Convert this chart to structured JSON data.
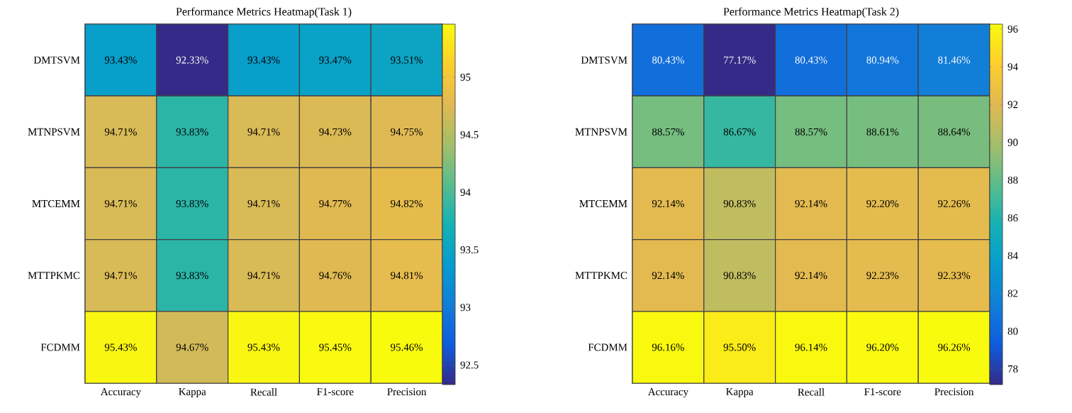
{
  "chart_data": [
    {
      "type": "heatmap",
      "title": "Performance Metrics Heatmap(Task 1)",
      "categories": [
        "Accuracy",
        "Kappa",
        "Recall",
        "F1-score",
        "Precision"
      ],
      "y_categories": [
        "DMTSVM",
        "MTNPSVM",
        "MTCEMM",
        "MTTPKMC",
        "FCDMM"
      ],
      "cells": [
        [
          93.43,
          92.33,
          93.43,
          93.47,
          93.51
        ],
        [
          94.71,
          93.83,
          94.71,
          94.73,
          94.75
        ],
        [
          94.71,
          93.83,
          94.71,
          94.77,
          94.82
        ],
        [
          94.71,
          93.83,
          94.71,
          94.76,
          94.81
        ],
        [
          95.43,
          94.67,
          95.43,
          95.45,
          95.46
        ]
      ],
      "cell_labels": [
        [
          "93.43%",
          "92.33%",
          "93.43%",
          "93.47%",
          "93.51%"
        ],
        [
          "94.71%",
          "93.83%",
          "94.71%",
          "94.73%",
          "94.75%"
        ],
        [
          "94.71%",
          "93.83%",
          "94.71%",
          "94.77%",
          "94.82%"
        ],
        [
          "94.71%",
          "93.83%",
          "94.71%",
          "94.76%",
          "94.81%"
        ],
        [
          "95.43%",
          "94.67%",
          "95.43%",
          "95.45%",
          "95.46%"
        ]
      ],
      "clim": [
        92.33,
        95.46
      ],
      "cticks": [
        92.5,
        93,
        93.5,
        94,
        94.5,
        95
      ]
    },
    {
      "type": "heatmap",
      "title": "Performance Metrics Heatmap(Task 2)",
      "categories": [
        "Accuracy",
        "Kappa",
        "Recall",
        "F1-score",
        "Precision"
      ],
      "y_categories": [
        "DMTSVM",
        "MTNPSVM",
        "MTCEMM",
        "MTTPKMC",
        "FCDMM"
      ],
      "cells": [
        [
          80.43,
          77.17,
          80.43,
          80.94,
          81.46
        ],
        [
          88.57,
          86.67,
          88.57,
          88.61,
          88.64
        ],
        [
          92.14,
          90.83,
          92.14,
          92.2,
          92.26
        ],
        [
          92.14,
          90.83,
          92.14,
          92.23,
          92.33
        ],
        [
          96.16,
          95.5,
          96.14,
          96.2,
          96.26
        ]
      ],
      "cell_labels": [
        [
          "80.43%",
          "77.17%",
          "80.43%",
          "80.94%",
          "81.46%"
        ],
        [
          "88.57%",
          "86.67%",
          "88.57%",
          "88.61%",
          "88.64%"
        ],
        [
          "92.14%",
          "90.83%",
          "92.14%",
          "92.20%",
          "92.26%"
        ],
        [
          "92.14%",
          "90.83%",
          "92.14%",
          "92.23%",
          "92.33%"
        ],
        [
          "96.16%",
          "95.50%",
          "96.14%",
          "96.20%",
          "96.26%"
        ]
      ],
      "clim": [
        77.17,
        96.26
      ],
      "cticks": [
        78,
        80,
        82,
        84,
        86,
        88,
        90,
        92,
        94,
        96
      ]
    }
  ]
}
